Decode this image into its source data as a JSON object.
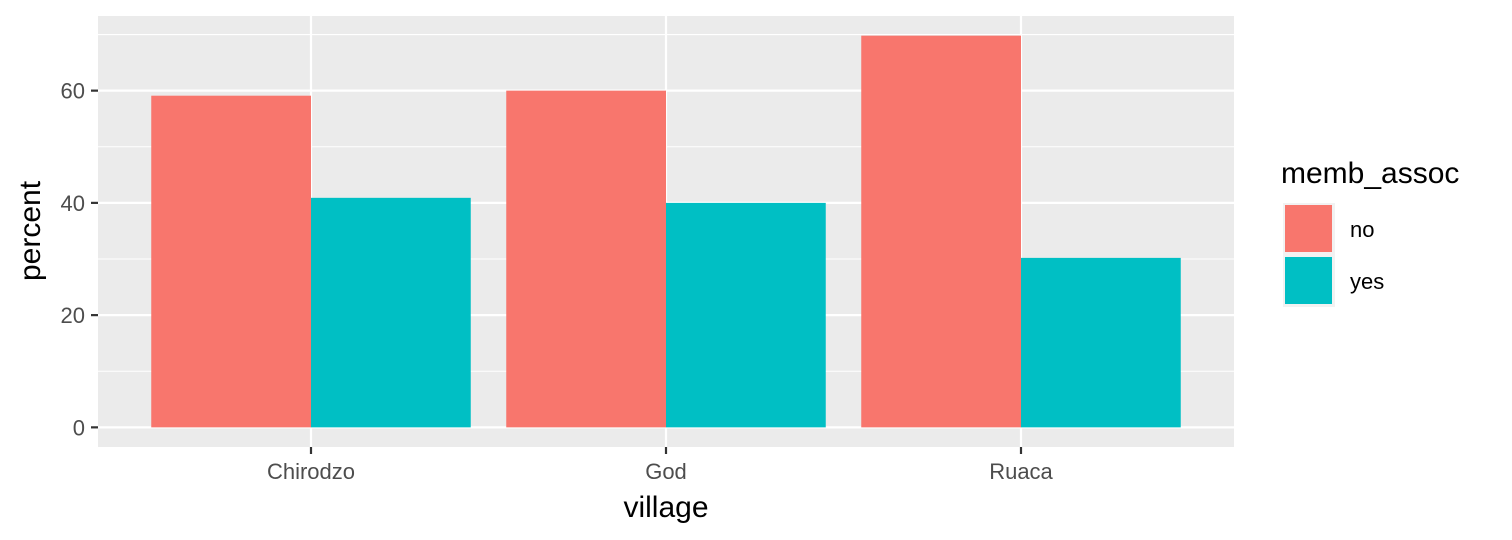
{
  "chart_data": {
    "type": "bar",
    "categories": [
      "Chirodzo",
      "God",
      "Ruaca"
    ],
    "series": [
      {
        "name": "no",
        "color": "#F8766D",
        "values": [
          59.1,
          60.0,
          69.8
        ]
      },
      {
        "name": "yes",
        "color": "#00BFC4",
        "values": [
          40.9,
          40.0,
          30.2
        ]
      }
    ],
    "xlabel": "village",
    "ylabel": "percent",
    "ylim": [
      -3.5,
      73.3
    ],
    "yticks": [
      0,
      20,
      40,
      60
    ],
    "legend": {
      "title": "memb_assoc",
      "position": "right"
    },
    "grid": true,
    "panel_color": "#EBEBEB"
  }
}
